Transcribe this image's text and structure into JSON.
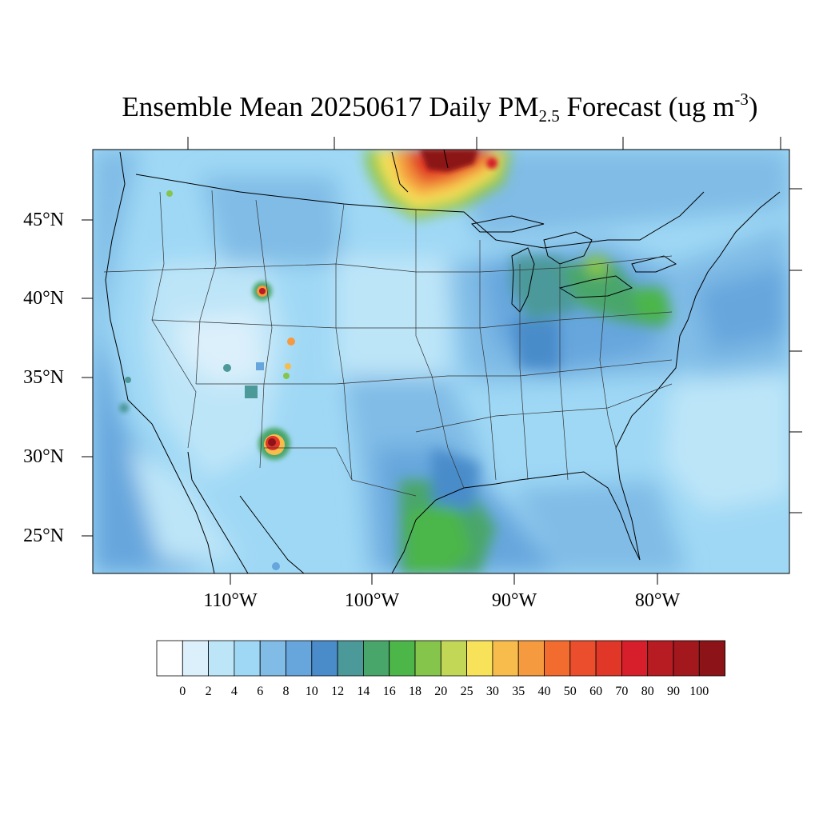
{
  "title": {
    "text": "Ensemble Mean 20250617 Daily PM",
    "subscript": "2.5",
    "after": " Forecast (ug m",
    "superscript": "-3",
    "close": ")"
  },
  "map": {
    "projection": "Lambert Conformal (CONUS)",
    "lat_labels": [
      "45°N",
      "40°N",
      "35°N",
      "30°N",
      "25°N"
    ],
    "lon_labels": [
      "110°W",
      "100°W",
      "90°W",
      "80°W"
    ],
    "hotspots": [
      {
        "name": "Canadian smoke plume (Ontario/Manitoba border)",
        "level": "90–100+"
      },
      {
        "name": "Southwest New Mexico fire",
        "level": "80–100"
      },
      {
        "name": "Central Wyoming fire",
        "level": "40–90"
      },
      {
        "name": "Southern Colorado / New Mexico fires",
        "level": "20–60"
      },
      {
        "name": "Gulf Coast (Texas/Louisiana)",
        "level": "16–20"
      },
      {
        "name": "Ohio Valley / Great Lakes / Pennsylvania",
        "level": "14–20"
      }
    ]
  },
  "colorbar": {
    "labels": [
      "0",
      "2",
      "4",
      "6",
      "8",
      "10",
      "12",
      "14",
      "16",
      "18",
      "20",
      "25",
      "30",
      "35",
      "40",
      "50",
      "60",
      "70",
      "80",
      "90",
      "100"
    ],
    "colors": [
      "#ffffff",
      "#dcf0fb",
      "#bde5f8",
      "#9fd8f5",
      "#80bce6",
      "#66a6dd",
      "#4a8cca",
      "#4c999a",
      "#48a66a",
      "#4cb649",
      "#86c54c",
      "#c3d756",
      "#f7e25a",
      "#f7bc4b",
      "#f59a3e",
      "#f26c30",
      "#ea4e2c",
      "#e03728",
      "#d61f2a",
      "#b71c22",
      "#a3181d",
      "#8c1418"
    ]
  }
}
